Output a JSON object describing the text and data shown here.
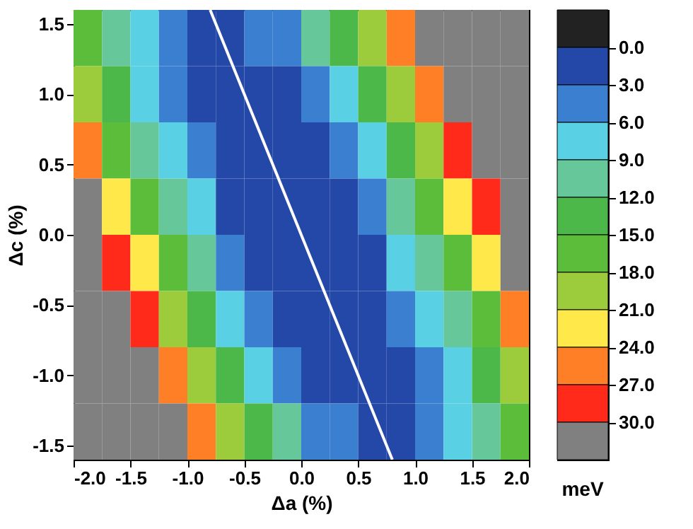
{
  "chart_data": {
    "type": "heatmap",
    "xlabel": "Δa (%)",
    "ylabel": "Δc (%)",
    "clabel": "meV",
    "x": [
      -1.875,
      -1.625,
      -1.375,
      -1.125,
      -0.875,
      -0.625,
      -0.375,
      -0.125,
      0.125,
      0.375,
      0.625,
      0.875,
      1.125,
      1.375,
      1.625,
      1.875
    ],
    "y": [
      1.4,
      1.0,
      0.6,
      0.2,
      -0.2,
      -0.6,
      -1.0,
      -1.4
    ],
    "cells": [
      [
        16.5,
        10.5,
        7.5,
        4.5,
        1.5,
        1.5,
        4.5,
        4.5,
        10.5,
        13.5,
        19.5,
        25.5,
        31.5,
        31.5,
        31.5,
        31.5
      ],
      [
        19.5,
        13.5,
        7.5,
        4.5,
        1.5,
        1.5,
        1.5,
        1.5,
        4.5,
        7.5,
        13.5,
        19.5,
        25.5,
        31.5,
        31.5,
        31.5
      ],
      [
        25.5,
        16.5,
        10.5,
        7.5,
        4.5,
        1.5,
        1.5,
        1.5,
        1.5,
        4.5,
        7.5,
        13.5,
        19.5,
        28.5,
        31.5,
        31.5
      ],
      [
        31.5,
        22.5,
        16.5,
        10.5,
        7.5,
        1.5,
        1.5,
        1.5,
        1.5,
        1.5,
        4.5,
        10.5,
        16.5,
        22.5,
        28.5,
        31.5
      ],
      [
        31.5,
        28.5,
        22.5,
        16.5,
        10.5,
        4.5,
        1.5,
        1.5,
        1.5,
        1.5,
        1.5,
        7.5,
        10.5,
        16.5,
        22.5,
        31.5
      ],
      [
        31.5,
        31.5,
        28.5,
        19.5,
        13.5,
        7.5,
        4.5,
        1.5,
        1.5,
        1.5,
        1.5,
        4.5,
        7.5,
        10.5,
        16.5,
        25.5
      ],
      [
        31.5,
        31.5,
        31.5,
        25.5,
        19.5,
        13.5,
        7.5,
        4.5,
        1.5,
        1.5,
        1.5,
        1.5,
        4.5,
        7.5,
        13.5,
        19.5
      ],
      [
        31.5,
        31.5,
        31.5,
        31.5,
        25.5,
        19.5,
        13.5,
        10.5,
        4.5,
        4.5,
        1.5,
        1.5,
        4.5,
        7.5,
        10.5,
        16.5
      ]
    ],
    "xlim": [
      -2,
      2
    ],
    "ylim": [
      -1.6,
      1.6
    ],
    "xticks": [
      {
        "value": -2,
        "label": "-2.0"
      },
      {
        "value": -1.5,
        "label": "-1.5"
      },
      {
        "value": -1,
        "label": "-1.0"
      },
      {
        "value": -0.5,
        "label": "-0.5"
      },
      {
        "value": 0,
        "label": "0.0"
      },
      {
        "value": 0.5,
        "label": "0.5"
      },
      {
        "value": 1,
        "label": "1.0"
      },
      {
        "value": 1.5,
        "label": "1.5"
      },
      {
        "value": 2,
        "label": "2.0"
      }
    ],
    "yticks": [
      {
        "value": -1.5,
        "label": "-1.5"
      },
      {
        "value": -1,
        "label": "-1.0"
      },
      {
        "value": -0.5,
        "label": "-0.5"
      },
      {
        "value": 0,
        "label": "0.0"
      },
      {
        "value": 0.5,
        "label": "0.5"
      },
      {
        "value": 1,
        "label": "1.0"
      },
      {
        "value": 1.5,
        "label": "1.5"
      }
    ],
    "clim": [
      -3,
      33
    ],
    "cticks": [
      {
        "value": 0,
        "label": "0.0"
      },
      {
        "value": 3,
        "label": "3.0"
      },
      {
        "value": 6,
        "label": "6.0"
      },
      {
        "value": 9,
        "label": "9.0"
      },
      {
        "value": 12,
        "label": "12.0"
      },
      {
        "value": 15,
        "label": "15.0"
      },
      {
        "value": 18,
        "label": "18.0"
      },
      {
        "value": 21,
        "label": "21.0"
      },
      {
        "value": 24,
        "label": "24.0"
      },
      {
        "value": 27,
        "label": "27.0"
      },
      {
        "value": 30,
        "label": "30.0"
      }
    ],
    "colors": [
      "#222222",
      "#2448a8",
      "#3a7fd0",
      "#5ad0e4",
      "#66c79a",
      "#4db84a",
      "#5cbd3b",
      "#9ccc3c",
      "#ffe84a",
      "#ff7f27",
      "#ff2a1a",
      "#808080"
    ],
    "series": [
      {
        "type": "line",
        "x": [
          -0.8,
          0.8
        ],
        "values": [
          1.6,
          -1.6
        ],
        "color": "#ffffff"
      }
    ]
  }
}
